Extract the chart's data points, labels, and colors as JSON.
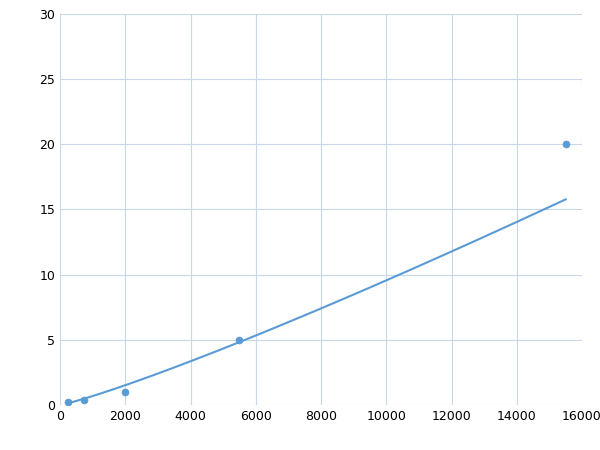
{
  "x": [
    250,
    750,
    2000,
    5500,
    15500
  ],
  "y": [
    0.2,
    0.4,
    1.0,
    5.0,
    20.0
  ],
  "line_color": "#5B9BD5",
  "marker_color": "#5B9BD5",
  "marker_size": 5,
  "line_width": 1.5,
  "xlim": [
    0,
    16000
  ],
  "ylim": [
    0,
    30
  ],
  "xticks": [
    0,
    2000,
    4000,
    6000,
    8000,
    10000,
    12000,
    14000,
    16000
  ],
  "yticks": [
    0,
    5,
    10,
    15,
    20,
    25,
    30
  ],
  "grid_color": "#C8D8E8",
  "background_color": "#FFFFFF",
  "figure_bg": "#FFFFFF"
}
